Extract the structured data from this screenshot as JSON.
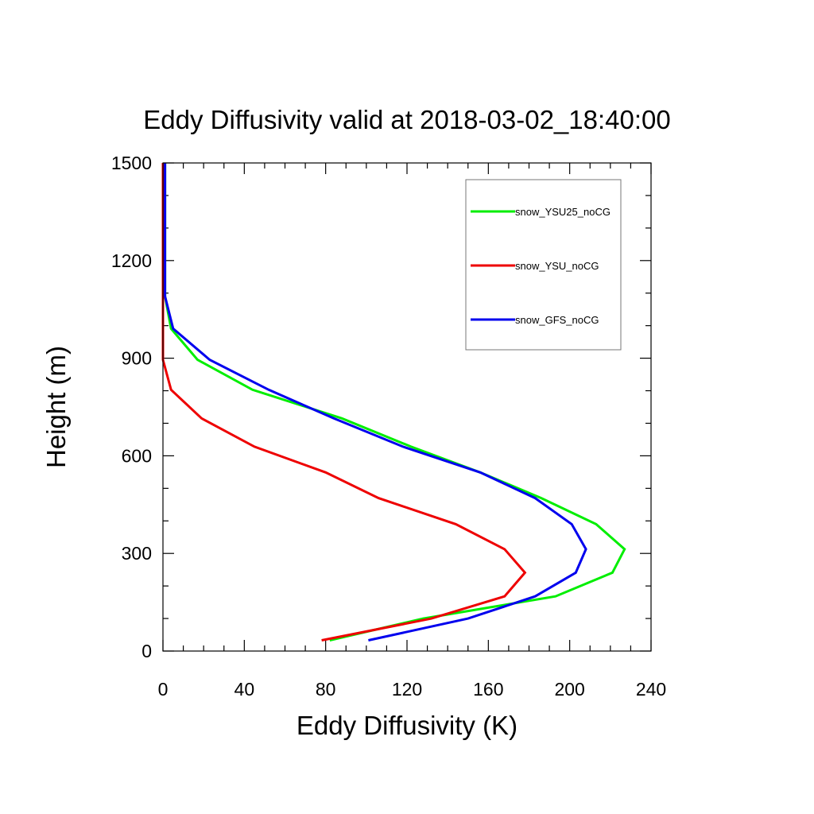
{
  "chart_data": {
    "type": "line",
    "title": "Eddy Diffusivity valid at 2018-03-02_18:40:00",
    "xlabel": "Eddy Diffusivity (K)",
    "ylabel": "Height (m)",
    "xlim": [
      0,
      240
    ],
    "ylim": [
      0,
      1500
    ],
    "x_ticks": [
      0,
      40,
      80,
      120,
      160,
      200,
      240
    ],
    "y_ticks": [
      0,
      300,
      600,
      900,
      1200,
      1500
    ],
    "x_tick_labels": [
      "0",
      "40",
      "80",
      "120",
      "160",
      "200",
      "240"
    ],
    "y_tick_labels": [
      "0",
      "300",
      "600",
      "900",
      "1200",
      "1500"
    ],
    "legend_position": "top-right",
    "grid": false,
    "series": [
      {
        "name": "snow_YSU25_noCG",
        "color": "#00ee00",
        "points": [
          [
            82,
            33
          ],
          [
            128,
            100
          ],
          [
            193,
            168
          ],
          [
            221,
            241
          ],
          [
            227,
            313
          ],
          [
            213,
            390
          ],
          [
            186,
            470
          ],
          [
            156,
            549
          ],
          [
            122,
            628
          ],
          [
            88,
            715
          ],
          [
            44,
            803
          ],
          [
            17,
            895
          ],
          [
            4,
            991
          ],
          [
            1,
            1090
          ],
          [
            1,
            1200
          ],
          [
            1,
            1300
          ],
          [
            1,
            1400
          ],
          [
            1,
            1500
          ]
        ]
      },
      {
        "name": "snow_YSU_noCG",
        "color": "#ee0000",
        "points": [
          [
            78,
            33
          ],
          [
            132,
            100
          ],
          [
            168,
            168
          ],
          [
            178,
            241
          ],
          [
            168,
            313
          ],
          [
            144,
            390
          ],
          [
            106,
            470
          ],
          [
            80,
            549
          ],
          [
            45,
            628
          ],
          [
            19,
            715
          ],
          [
            4,
            803
          ],
          [
            0,
            895
          ],
          [
            0,
            991
          ],
          [
            0,
            1090
          ],
          [
            0,
            1200
          ],
          [
            0,
            1300
          ],
          [
            0,
            1400
          ],
          [
            0,
            1500
          ]
        ]
      },
      {
        "name": "snow_GFS_noCG",
        "color": "#0000ee",
        "points": [
          [
            101,
            33
          ],
          [
            150,
            100
          ],
          [
            183,
            168
          ],
          [
            203,
            241
          ],
          [
            208,
            313
          ],
          [
            201,
            390
          ],
          [
            183,
            470
          ],
          [
            156,
            549
          ],
          [
            118,
            628
          ],
          [
            84,
            715
          ],
          [
            52,
            803
          ],
          [
            23,
            895
          ],
          [
            5,
            991
          ],
          [
            1,
            1090
          ],
          [
            1,
            1200
          ],
          [
            1,
            1300
          ],
          [
            1,
            1400
          ],
          [
            1,
            1500
          ]
        ]
      }
    ]
  }
}
